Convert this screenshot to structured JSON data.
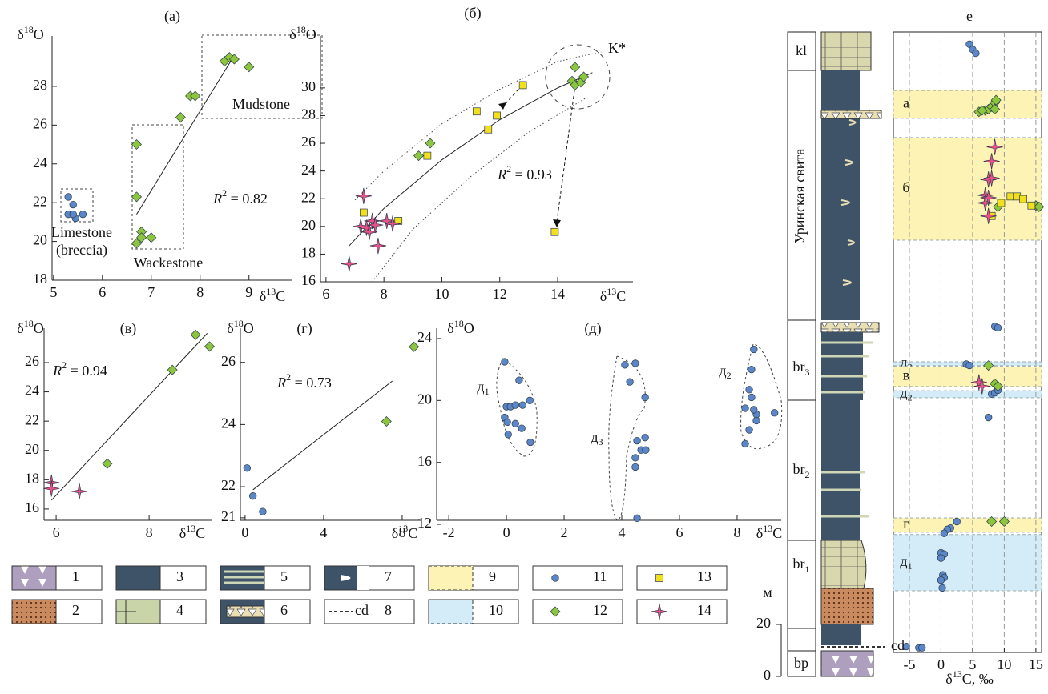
{
  "charts": [
    {
      "type": "scatter",
      "title": "(а)",
      "x_label": [
        "δ",
        "13",
        "C"
      ],
      "y_label": [
        "δ",
        "18",
        "O"
      ],
      "xlim": [
        4.97,
        9.89
      ],
      "ylim": [
        18,
        30.6
      ],
      "xticks": [
        5,
        6,
        7,
        8,
        9
      ],
      "yticks": [
        18,
        20,
        22,
        24,
        26,
        28
      ],
      "series": [
        {
          "marker": "circle",
          "color": "#5b87c8",
          "values": [
            [
              5.3,
              22.3
            ],
            [
              5.4,
              21.9
            ],
            [
              5.3,
              21.4
            ],
            [
              5.45,
              21.2
            ],
            [
              5.6,
              21.4
            ],
            [
              5.4,
              21.4
            ]
          ]
        },
        {
          "marker": "diamond",
          "color": "#8cc63e",
          "values": [
            [
              6.7,
              25
            ],
            [
              6.7,
              22.3
            ],
            [
              6.8,
              20.5
            ],
            [
              6.8,
              20.2
            ],
            [
              6.7,
              19.9
            ],
            [
              7.0,
              20.2
            ],
            [
              7.6,
              26.4
            ],
            [
              7.8,
              27.5
            ],
            [
              7.9,
              27.5
            ],
            [
              8.5,
              29.3
            ],
            [
              8.6,
              29.5
            ],
            [
              8.7,
              29.4
            ],
            [
              9.0,
              29.0
            ]
          ]
        }
      ],
      "fit": {
        "x": [
          6.7,
          8.7
        ],
        "y": [
          21.4,
          29.6
        ]
      },
      "annotations": [
        [
          "R",
          "2",
          " = 0.82"
        ],
        [
          "Limestone"
        ],
        [
          "(breccia)"
        ],
        [
          "Wackestone"
        ],
        [
          "Mudstone"
        ]
      ]
    },
    {
      "type": "scatter",
      "title": "(б)",
      "x_label": [
        "δ",
        "13",
        "C"
      ],
      "y_label": [
        "δ",
        "18",
        "O"
      ],
      "xlim": [
        5.81,
        16.6
      ],
      "ylim": [
        16,
        33.75
      ],
      "xticks": [
        6,
        8,
        10,
        12,
        14
      ],
      "yticks": [
        16,
        18,
        20,
        22,
        24,
        26,
        28,
        30
      ],
      "series": [
        {
          "marker": "diamond",
          "color": "#8cc63e",
          "values": [
            [
              9.2,
              25.1
            ],
            [
              9.6,
              26.0
            ],
            [
              14.6,
              31.5
            ],
            [
              14.5,
              30.5
            ],
            [
              14.6,
              30.2
            ],
            [
              14.8,
              30.4
            ],
            [
              14.9,
              30.8
            ]
          ]
        },
        {
          "marker": "square",
          "color": "#f3e01c",
          "values": [
            [
              7.3,
              21
            ],
            [
              8.5,
              20.4
            ],
            [
              9.5,
              25.1
            ],
            [
              11.2,
              28.3
            ],
            [
              11.6,
              27
            ],
            [
              11.9,
              28.0
            ],
            [
              12.8,
              30.2
            ],
            [
              13.9,
              19.6
            ]
          ]
        },
        {
          "marker": "star",
          "color": "#e8508a",
          "values": [
            [
              7.3,
              22.2
            ],
            [
              7.2,
              20
            ],
            [
              7.4,
              19.9
            ],
            [
              7.6,
              20.4
            ],
            [
              7.7,
              20.1
            ],
            [
              7.8,
              18.6
            ],
            [
              8.1,
              20.4
            ],
            [
              8.3,
              20.2
            ],
            [
              7.5,
              19.6
            ],
            [
              6.8,
              17.3
            ]
          ]
        }
      ],
      "fit": {
        "x": [
          6.8,
          8,
          10,
          12,
          14,
          15.2
        ],
        "y": [
          18.6,
          21.3,
          24.8,
          27.7,
          30.0,
          31.1
        ]
      },
      "envelopes": [
        {
          "x": [
            7,
            8,
            10,
            12,
            14,
            15.5
          ],
          "y": [
            21.9,
            24,
            27.4,
            29.9,
            31.9,
            32.6
          ]
        },
        {
          "x": [
            7.6,
            9,
            11,
            13,
            15
          ],
          "y": [
            16,
            19.8,
            23.6,
            26.8,
            29.3
          ]
        }
      ],
      "annotations": [
        [
          "R",
          "2",
          " = 0.93"
        ],
        [
          "K*"
        ]
      ]
    },
    {
      "type": "scatter",
      "title": "(в)",
      "x_label": [
        "δ",
        "13",
        "C"
      ],
      "y_label": [
        "δ",
        "18",
        "O"
      ],
      "xlim": [
        5.74,
        9.36
      ],
      "ylim": [
        15.23,
        28.35
      ],
      "xticks": [
        6,
        8
      ],
      "yticks": [
        16,
        18,
        20,
        22,
        24,
        26
      ],
      "series": [
        {
          "marker": "diamond",
          "color": "#8cc63e",
          "values": [
            [
              7.1,
              19.1
            ],
            [
              8.5,
              25.5
            ],
            [
              9.0,
              27.9
            ],
            [
              9.3,
              27.1
            ]
          ]
        },
        {
          "marker": "star",
          "color": "#e8508a",
          "values": [
            [
              5.9,
              17.8
            ],
            [
              5.9,
              17.4
            ],
            [
              6.5,
              17.2
            ]
          ]
        }
      ],
      "fit": {
        "x": [
          5.9,
          9.25
        ],
        "y": [
          16.6,
          28.0
        ]
      },
      "annotations": [
        [
          "R",
          "2",
          " = 0.94"
        ]
      ]
    },
    {
      "type": "scatter",
      "title": "(г)",
      "x_label": [
        "δ",
        "13",
        "C"
      ],
      "y_label": [
        "δ",
        "18",
        "O"
      ],
      "xlim": [
        -0.24,
        8.94
      ],
      "ylim": [
        20.92,
        27.1
      ],
      "xticks": [
        0,
        4,
        8
      ],
      "yticks": [
        21,
        22,
        24,
        26
      ],
      "series": [
        {
          "marker": "circle",
          "color": "#5b87c8",
          "values": [
            [
              0.1,
              22.6
            ],
            [
              0.4,
              21.7
            ],
            [
              0.9,
              21.2
            ]
          ]
        },
        {
          "marker": "diamond",
          "color": "#8cc63e",
          "values": [
            [
              7.2,
              24.1
            ],
            [
              8.6,
              26.5
            ]
          ]
        }
      ],
      "fit": {
        "x": [
          0.4,
          7.5
        ],
        "y": [
          21.9,
          25.4
        ]
      },
      "annotations": [
        [
          "R",
          "2",
          " = 0.73"
        ]
      ]
    },
    {
      "type": "scatter",
      "title": "(д)",
      "y_label": [
        "δ",
        "18",
        "O"
      ],
      "x_label": [
        "δ",
        "13",
        "C"
      ],
      "xlim": [
        -2.42,
        9.53
      ],
      "ylim": [
        12.26,
        24.67
      ],
      "xticks": [
        -2,
        0,
        2,
        4,
        6,
        8
      ],
      "yticks": [
        12,
        16,
        20,
        24
      ],
      "series": [
        {
          "marker": "circle",
          "color": "#5b87c8",
          "values": [
            [
              -0.06,
              22.5
            ],
            [
              0.44,
              21.3
            ],
            [
              0.81,
              20.0
            ],
            [
              0,
              19.6
            ],
            [
              0.14,
              19.6
            ],
            [
              0.31,
              19.7
            ],
            [
              0.56,
              19.7
            ],
            [
              -0.06,
              18.9
            ],
            [
              0.03,
              18.6
            ],
            [
              0.31,
              18.5
            ],
            [
              0.53,
              18.2
            ],
            [
              0.06,
              17.8
            ],
            [
              0.83,
              17.3
            ],
            [
              4.11,
              22.3
            ],
            [
              4.47,
              22.4
            ],
            [
              4.28,
              21.2
            ],
            [
              4.81,
              20.2
            ],
            [
              4.53,
              17.4
            ],
            [
              4.81,
              17.6
            ],
            [
              4.47,
              16.3
            ],
            [
              4.67,
              16.8
            ],
            [
              4.83,
              16.8
            ],
            [
              4.47,
              15.7
            ],
            [
              4.53,
              12.4
            ],
            [
              8.58,
              23.3
            ],
            [
              8.5,
              22.0
            ],
            [
              8.5,
              20.2
            ],
            [
              8.28,
              19.5
            ],
            [
              8.67,
              19.1
            ],
            [
              8.58,
              19.4
            ],
            [
              8.42,
              20.7
            ],
            [
              8.67,
              18.7
            ],
            [
              8.42,
              18.1
            ],
            [
              9.3,
              19.2
            ],
            [
              8.28,
              17.2
            ]
          ]
        }
      ],
      "annotations": [
        [
          "д",
          "1"
        ],
        [
          "д",
          "3"
        ],
        [
          "д",
          "2"
        ]
      ]
    },
    {
      "type": "section",
      "title": "е",
      "x_label": [
        "δ",
        "13",
        "C, ‰"
      ],
      "xlim": [
        -7.53,
        15.9
      ],
      "ylim": [
        9.2,
        247.7
      ],
      "xticks": [
        -5,
        0,
        5,
        10,
        15
      ],
      "grid": true,
      "bands": [
        {
          "label": [
            "а"
          ],
          "from": 214.5,
          "to": 225.2,
          "color": "#fcf3b4"
        },
        {
          "label": [
            "б"
          ],
          "from": 167.7,
          "to": 207.1,
          "color": "#fcf3b4"
        },
        {
          "label": [
            "д",
            "3"
          ],
          "from": 119.4,
          "to": 120.9,
          "color": "#d3ecf8"
        },
        {
          "label": [
            "в"
          ],
          "from": 111.4,
          "to": 119.1,
          "color": "#fcf3b4"
        },
        {
          "label": [
            "д",
            "2"
          ],
          "from": 107.1,
          "to": 109.8,
          "color": "#d3ecf8"
        },
        {
          "label": [
            "г"
          ],
          "from": 55.4,
          "to": 60.9,
          "color": "#fcf3b4"
        },
        {
          "label": [
            "д",
            "1"
          ],
          "from": 32.9,
          "to": 54.5,
          "color": "#d3ecf8"
        }
      ],
      "series": [
        {
          "marker": "circle",
          "color": "#5b87c8",
          "values": [
            [
              4.5,
              243
            ],
            [
              5,
              241
            ],
            [
              5.5,
              239.5
            ],
            [
              -5.5,
              11.5
            ],
            [
              -3.5,
              11
            ],
            [
              -3,
              11
            ],
            [
              2.5,
              59.5
            ],
            [
              1.5,
              57
            ],
            [
              1,
              56.5
            ],
            [
              0.5,
              55
            ],
            [
              0,
              47.5
            ],
            [
              0.5,
              47
            ],
            [
              0,
              45.5
            ],
            [
              0.3,
              39
            ],
            [
              0.5,
              38
            ],
            [
              0,
              37
            ],
            [
              0.2,
              34
            ],
            [
              4,
              120
            ],
            [
              4.5,
              119.5
            ],
            [
              8,
              108.5
            ],
            [
              8.5,
              109
            ],
            [
              9,
              110
            ],
            [
              7.5,
              99.5
            ],
            [
              8.5,
              134.5
            ],
            [
              9,
              134
            ]
          ]
        },
        {
          "marker": "diamond",
          "color": "#8cc63e",
          "values": [
            [
              7,
              217.5
            ],
            [
              7.5,
              218
            ],
            [
              8,
              219
            ],
            [
              8.5,
              220.5
            ],
            [
              8.7,
              221.5
            ],
            [
              6,
              217
            ],
            [
              6.5,
              217.5
            ],
            [
              8.5,
              218
            ],
            [
              9,
              180.5
            ],
            [
              15,
              181
            ],
            [
              15.5,
              180.5
            ],
            [
              7.5,
              119.5
            ],
            [
              8.5,
              112.5
            ],
            [
              9,
              111.5
            ],
            [
              8,
              59.5
            ],
            [
              10,
              59.5
            ]
          ]
        },
        {
          "marker": "square",
          "color": "#f3e01c",
          "values": [
            [
              11,
              184.5
            ],
            [
              12,
              184.5
            ],
            [
              13,
              183.5
            ],
            [
              14.3,
              181
            ],
            [
              9.5,
              182
            ],
            [
              8,
              177
            ]
          ]
        },
        {
          "marker": "star",
          "color": "#e8508a",
          "values": [
            [
              8.5,
              203.5
            ],
            [
              8,
              198
            ],
            [
              7.5,
              191
            ],
            [
              8,
              191.5
            ],
            [
              7,
              185
            ],
            [
              7.5,
              184
            ],
            [
              7,
              182
            ],
            [
              7.5,
              177
            ],
            [
              6,
              113
            ],
            [
              6.5,
              111.5
            ]
          ]
        }
      ],
      "column": {
        "units": "м",
        "scale": [
          0,
          20
        ],
        "cd": "cd",
        "units_labels": [
          [
            "kl"
          ],
          [
            "Уринская свита"
          ],
          [
            "br",
            "3"
          ],
          [
            "br",
            "2"
          ],
          [
            "br",
            "1"
          ],
          [
            "bp"
          ]
        ]
      }
    }
  ],
  "legend": [
    {
      "number": 1
    },
    {
      "number": 2
    },
    {
      "number": 3
    },
    {
      "number": 4
    },
    {
      "number": 5
    },
    {
      "number": 6
    },
    {
      "number": 7
    },
    {
      "number": 8,
      "text": "cd"
    },
    {
      "number": 9
    },
    {
      "number": 10
    },
    {
      "number": 11
    },
    {
      "number": 12
    },
    {
      "number": 13
    },
    {
      "number": 14
    }
  ]
}
